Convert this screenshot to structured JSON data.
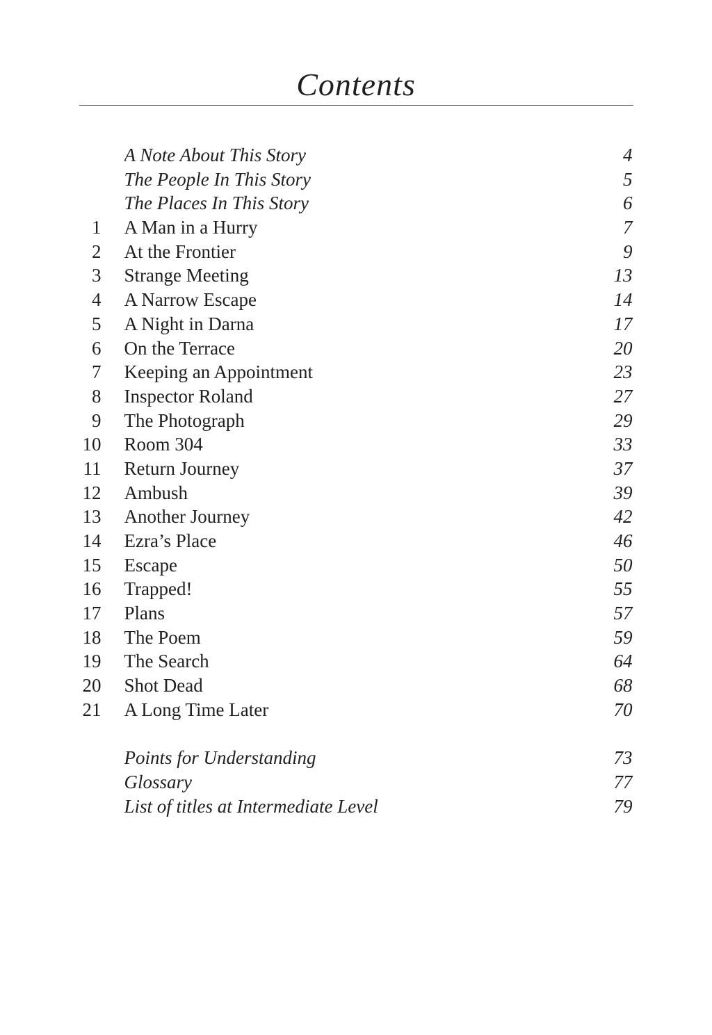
{
  "page": {
    "title": "Contents"
  },
  "toc": {
    "front_matter": [
      {
        "title": "A Note About This Story",
        "page": "4"
      },
      {
        "title": "The People In This Story",
        "page": "5"
      },
      {
        "title": "The Places In This Story",
        "page": "6"
      }
    ],
    "chapters": [
      {
        "num": "1",
        "title": "A Man in a Hurry",
        "page": "7"
      },
      {
        "num": "2",
        "title": "At the Frontier",
        "page": "9"
      },
      {
        "num": "3",
        "title": "Strange Meeting",
        "page": "13"
      },
      {
        "num": "4",
        "title": "A Narrow Escape",
        "page": "14"
      },
      {
        "num": "5",
        "title": "A Night in Darna",
        "page": "17"
      },
      {
        "num": "6",
        "title": "On the Terrace",
        "page": "20"
      },
      {
        "num": "7",
        "title": "Keeping an Appointment",
        "page": "23"
      },
      {
        "num": "8",
        "title": "Inspector Roland",
        "page": "27"
      },
      {
        "num": "9",
        "title": "The Photograph",
        "page": "29"
      },
      {
        "num": "10",
        "title": "Room 304",
        "page": "33"
      },
      {
        "num": "11",
        "title": "Return Journey",
        "page": "37"
      },
      {
        "num": "12",
        "title": "Ambush",
        "page": "39"
      },
      {
        "num": "13",
        "title": "Another Journey",
        "page": "42"
      },
      {
        "num": "14",
        "title": "Ezra’s Place",
        "page": "46"
      },
      {
        "num": "15",
        "title": "Escape",
        "page": "50"
      },
      {
        "num": "16",
        "title": "Trapped!",
        "page": "55"
      },
      {
        "num": "17",
        "title": "Plans",
        "page": "57"
      },
      {
        "num": "18",
        "title": "The Poem",
        "page": "59"
      },
      {
        "num": "19",
        "title": "The Search",
        "page": "64"
      },
      {
        "num": "20",
        "title": "Shot Dead",
        "page": "68"
      },
      {
        "num": "21",
        "title": "A Long Time Later",
        "page": "70"
      }
    ],
    "back_matter": [
      {
        "title": "Points for Understanding",
        "page": "73"
      },
      {
        "title": "Glossary",
        "page": "77"
      },
      {
        "title": "List of titles at Intermediate Level",
        "page": "79"
      }
    ]
  },
  "colors": {
    "background": "#ffffff",
    "text": "#1f1f1f",
    "rule": "#595959"
  }
}
